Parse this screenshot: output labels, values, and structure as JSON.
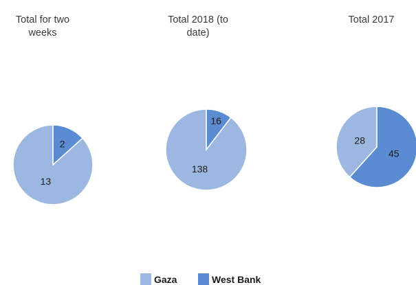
{
  "chart_data": [
    {
      "type": "pie",
      "title": "Total for two weeks",
      "categories": [
        "Gaza",
        "West Bank"
      ],
      "values": [
        13,
        2
      ]
    },
    {
      "type": "pie",
      "title": "Total 2018 (to date)",
      "categories": [
        "Gaza",
        "West Bank"
      ],
      "values": [
        138,
        16
      ]
    },
    {
      "type": "pie",
      "title": "Total 2017",
      "categories": [
        "Gaza",
        "West Bank"
      ],
      "values": [
        28,
        45
      ]
    }
  ],
  "legend": {
    "items": [
      {
        "label": "Gaza",
        "color": "#9db8e0"
      },
      {
        "label": "West Bank",
        "color": "#5b8bd1"
      }
    ],
    "placement": "bottom"
  },
  "colors": {
    "gaza": "#9db8e0",
    "west_bank": "#5b8bd1"
  }
}
